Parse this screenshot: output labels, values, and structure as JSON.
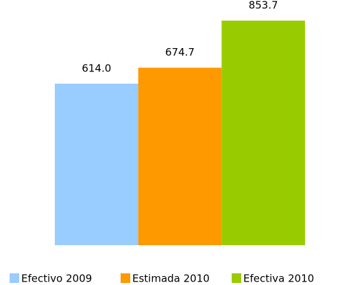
{
  "chart_data": {
    "type": "bar",
    "categories": [
      "Efectivo 2009",
      "Estimada 2010",
      "Efectiva 2010"
    ],
    "values": [
      614.0,
      674.7,
      853.7
    ],
    "value_labels": [
      "614.0",
      "674.7",
      "853.7"
    ],
    "colors": [
      "#99ccff",
      "#ff9900",
      "#99cc00"
    ],
    "legend": "bottom"
  }
}
